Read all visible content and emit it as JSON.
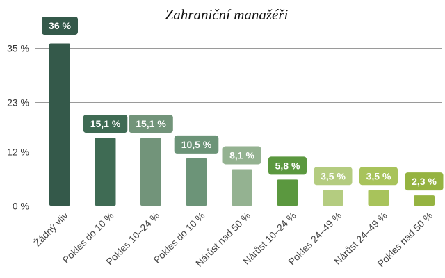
{
  "chart_data": {
    "type": "bar",
    "title": "Zahraniční manažéři",
    "categories": [
      "Žádný vliv",
      "Pokles do 10 %",
      "Pokles 10–24 %",
      "Pokles do 10 %",
      "Nárůst nad 50 %",
      "Nárůst 10–24 %",
      "Pokles 24–49 %",
      "Nárůst 24–49 %",
      "Pokles nad 50 %"
    ],
    "values": [
      36,
      15.1,
      15.1,
      10.5,
      8.1,
      5.8,
      3.5,
      3.5,
      2.3
    ],
    "data_labels": [
      "36 %",
      "15,1 %",
      "15,1 %",
      "10,5 %",
      "8,1 %",
      "5,8 %",
      "3,5 %",
      "3,5 %",
      "2,3 %"
    ],
    "yticks": [
      0,
      12,
      23,
      35
    ],
    "ytick_labels": [
      "0 %",
      "12 %",
      "23 %",
      "35 %"
    ],
    "ylim": [
      0,
      35
    ],
    "xlabel": "",
    "ylabel": "",
    "grid": true,
    "legend": "none",
    "colors": [
      "#34594a",
      "#3f6b54",
      "#72947a",
      "#6c9478",
      "#94b291",
      "#5b983f",
      "#b4cc80",
      "#a8c35b",
      "#95b341"
    ]
  }
}
